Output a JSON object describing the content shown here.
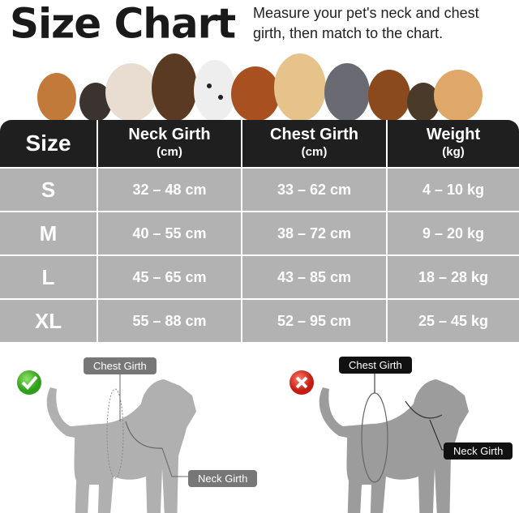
{
  "header": {
    "title": "Size Chart",
    "subtitle": "Measure your pet's neck and chest girth, then match to the chart."
  },
  "table": {
    "columns": [
      {
        "label": "Size",
        "unit": ""
      },
      {
        "label": "Neck Girth",
        "unit": "(cm)"
      },
      {
        "label": "Chest Girth",
        "unit": "(cm)"
      },
      {
        "label": "Weight",
        "unit": "(kg)"
      }
    ],
    "rows": [
      [
        "S",
        "32 – 48 cm",
        "33 – 62 cm",
        "4 – 10 kg"
      ],
      [
        "M",
        "40 – 55 cm",
        "38 – 72 cm",
        "9 – 20 kg"
      ],
      [
        "L",
        "45 – 65 cm",
        "43 – 85 cm",
        "18 – 28 kg"
      ],
      [
        "XL",
        "55 – 88 cm",
        "52 – 95 cm",
        "25 – 45 kg"
      ]
    ]
  },
  "diagram": {
    "correct": {
      "icon": "check-icon",
      "color": "#3cb521",
      "chest_label": "Chest Girth",
      "neck_label": "Neck Girth"
    },
    "wrong": {
      "icon": "x-icon",
      "color": "#d9261c",
      "chest_label": "Chest Girth",
      "neck_label": "Neck Girth"
    }
  }
}
